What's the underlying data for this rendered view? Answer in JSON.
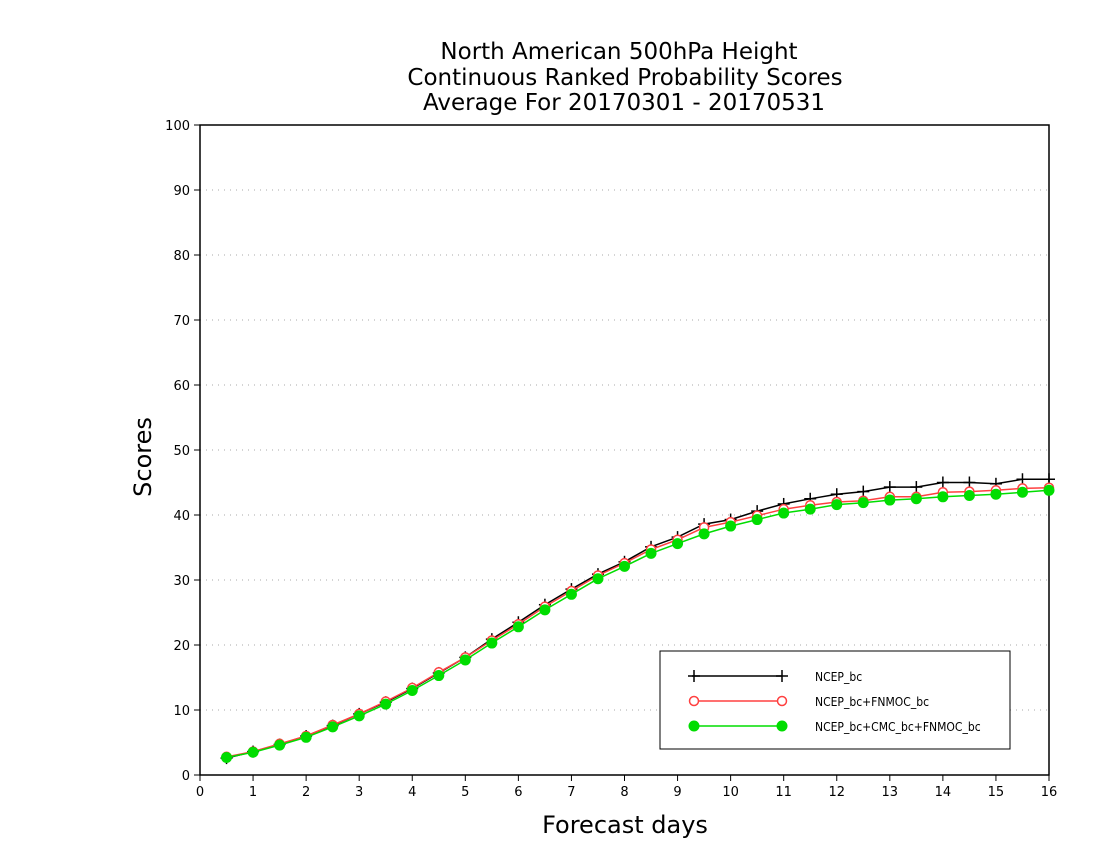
{
  "chart_data": {
    "type": "line",
    "title": [
      "North American 500hPa Height",
      "Continuous Ranked Probability Scores",
      "Average For 20170301 - 20170531"
    ],
    "xlabel": "Forecast days",
    "ylabel": "Scores",
    "xlim": [
      0,
      16
    ],
    "ylim": [
      0,
      100
    ],
    "xticks": [
      0,
      1,
      2,
      3,
      4,
      5,
      6,
      7,
      8,
      9,
      10,
      11,
      12,
      13,
      14,
      15,
      16
    ],
    "yticks": [
      0,
      10,
      20,
      30,
      40,
      50,
      60,
      70,
      80,
      90,
      100
    ],
    "grid": true,
    "legend_position": "lower-right",
    "x": [
      0.5,
      1,
      1.5,
      2,
      2.5,
      3,
      3.5,
      4,
      4.5,
      5,
      5.5,
      6,
      6.5,
      7,
      7.5,
      8,
      8.5,
      9,
      9.5,
      10,
      10.5,
      11,
      11.5,
      12,
      12.5,
      13,
      13.5,
      14,
      14.5,
      15,
      15.5,
      16
    ],
    "series": [
      {
        "name": "NCEP_bc",
        "color": "#000000",
        "marker": "plus",
        "values": [
          2.6,
          3.6,
          4.7,
          6.0,
          7.6,
          9.4,
          11.2,
          13.3,
          15.7,
          18.1,
          20.9,
          23.5,
          26.2,
          28.6,
          30.9,
          32.8,
          35.1,
          36.6,
          38.6,
          39.3,
          40.6,
          41.7,
          42.5,
          43.2,
          43.6,
          44.3,
          44.3,
          45.0,
          45.0,
          44.8,
          45.5,
          45.5
        ]
      },
      {
        "name": "NCEP_bc+FNMOC_bc",
        "color": "#ff4040",
        "marker": "circle-open",
        "values": [
          2.8,
          3.6,
          4.8,
          6.0,
          7.7,
          9.4,
          11.3,
          13.4,
          15.8,
          18.1,
          20.7,
          23.2,
          25.9,
          28.3,
          30.7,
          32.6,
          34.7,
          36.2,
          38.1,
          38.9,
          39.9,
          40.9,
          41.5,
          42.0,
          42.2,
          42.8,
          42.8,
          43.5,
          43.6,
          43.8,
          44.1,
          44.2
        ]
      },
      {
        "name": "NCEP_bc+CMC_bc+FNMOC_bc",
        "color": "#00dd00",
        "marker": "circle-filled",
        "values": [
          2.7,
          3.5,
          4.6,
          5.8,
          7.4,
          9.1,
          10.9,
          13.0,
          15.3,
          17.7,
          20.3,
          22.8,
          25.4,
          27.8,
          30.2,
          32.1,
          34.1,
          35.6,
          37.1,
          38.3,
          39.3,
          40.3,
          40.9,
          41.6,
          41.9,
          42.3,
          42.5,
          42.8,
          43.0,
          43.2,
          43.5,
          43.8
        ]
      }
    ]
  }
}
